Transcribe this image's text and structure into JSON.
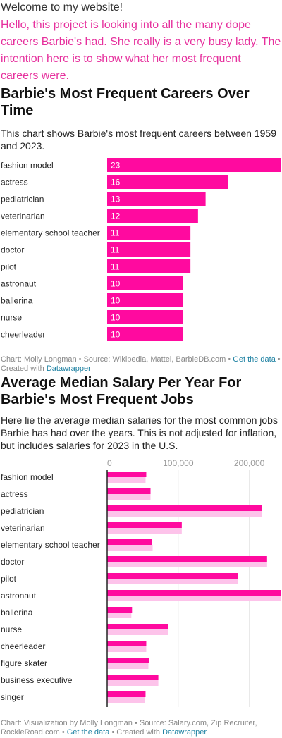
{
  "page": {
    "welcome": "Welcome to my website!",
    "intro": "Hello, this project is looking into all the many dope careers Barbie's had. She really is a very busy lady. The intention here is to show what her most frequent careers were."
  },
  "chart1": {
    "title": "Barbie's Most Frequent Careers Over Time",
    "description": "This chart shows Barbie's most frequent careers between 1959 and 2023.",
    "footer": {
      "text1": "Chart: Molly Longman • Source: Wikipedia, Mattel, BarbieDB.com •",
      "link1": "Get the data",
      "text2": "• Created with",
      "link2": "Datawrapper"
    }
  },
  "chart2": {
    "title": "Average Median Salary Per Year For Barbie's Most Frequent Jobs",
    "description": "Here lie the average median salaries for the most common jobs Barbie has had over the years. This is not adjusted for inflation, but includes salaries for 2023 in the U.S.",
    "footer": {
      "text1": "Chart: Visualization by Molly Longman • Source: Salary.com, Zip Recruiter, RockieRoad.com •",
      "link1": "Get the data",
      "text2": "• Created with",
      "link2": "Datawrapper"
    }
  },
  "chart_data": [
    {
      "type": "bar",
      "orientation": "horizontal",
      "title": "Barbie's Most Frequent Careers Over Time",
      "categories": [
        "fashion model",
        "actress",
        "pediatrician",
        "veterinarian",
        "elementary school teacher",
        "doctor",
        "pilot",
        "astronaut",
        "ballerina",
        "nurse",
        "cheerleader"
      ],
      "values": [
        23,
        16,
        13,
        12,
        11,
        11,
        11,
        10,
        10,
        10,
        10
      ],
      "xlim": [
        0,
        23
      ],
      "data_labels": true,
      "grid": false,
      "color": "#ff0a9f",
      "label_color": "#ffffff"
    },
    {
      "type": "bar",
      "orientation": "horizontal",
      "title": "Average Median Salary Per Year For Barbie's Most Frequent Jobs",
      "categories": [
        "fashion model",
        "actress",
        "pediatrician",
        "veterinarian",
        "elementary school teacher",
        "doctor",
        "pilot",
        "astronaut",
        "ballerina",
        "nurse",
        "cheerleader",
        "figure skater",
        "business executive",
        "singer"
      ],
      "series": [
        {
          "values": [
            55000,
            61000,
            218000,
            105000,
            63000,
            225000,
            184000,
            245000,
            35000,
            86000,
            55000,
            59000,
            72000,
            54000
          ],
          "color": "#ff0a9f"
        },
        {
          "values": [
            54000,
            61000,
            218000,
            105000,
            64000,
            225000,
            184000,
            245000,
            34000,
            86000,
            55000,
            58000,
            72000,
            53000
          ],
          "color": "#fdc3ea"
        }
      ],
      "xlim": [
        0,
        245000
      ],
      "xticks": [
        0,
        100000,
        200000
      ],
      "xtick_labels": [
        "0",
        "100,000",
        "200,000"
      ],
      "grid": true,
      "gridline_color": "#e6e6e6",
      "zero_line_color": "#222222"
    }
  ]
}
